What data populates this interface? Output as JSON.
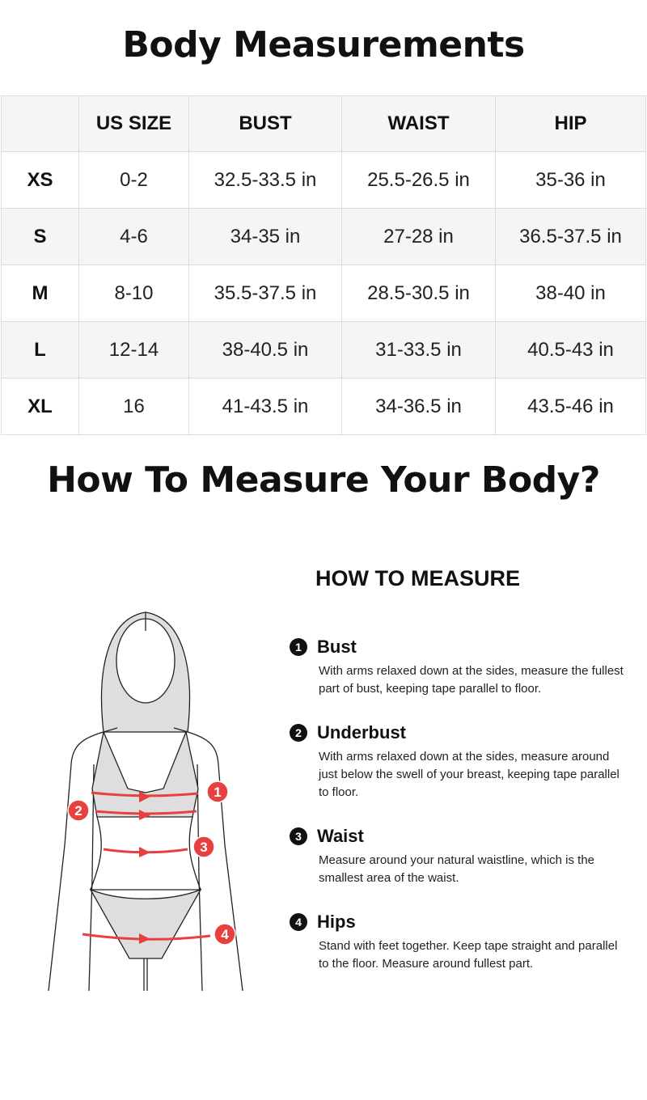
{
  "title": "Body Measurements",
  "table": {
    "headers": [
      "",
      "US SIZE",
      "BUST",
      "WAIST",
      "HIP"
    ],
    "rows": [
      [
        "XS",
        "0-2",
        "32.5-33.5 in",
        "25.5-26.5 in",
        "35-36 in"
      ],
      [
        "S",
        "4-6",
        "34-35 in",
        "27-28 in",
        "36.5-37.5 in"
      ],
      [
        "M",
        "8-10",
        "35.5-37.5 in",
        "28.5-30.5 in",
        "38-40 in"
      ],
      [
        "L",
        "12-14",
        "38-40.5 in",
        "31-33.5 in",
        "40.5-43 in"
      ],
      [
        "XL",
        "16",
        "41-43.5 in",
        "34-36.5 in",
        "43.5-46 in"
      ]
    ]
  },
  "subtitle": "How To Measure Your Body?",
  "guide": {
    "title": "HOW TO MEASURE",
    "steps": [
      {
        "num": "1",
        "title": "Bust",
        "desc": "With arms relaxed down at the sides, measure the fullest part of bust, keeping tape parallel to floor."
      },
      {
        "num": "2",
        "title": "Underbust",
        "desc": "With arms relaxed down at the sides, measure around just below the swell of your breast, keeping tape parallel to floor."
      },
      {
        "num": "3",
        "title": "Waist",
        "desc": "Measure around your natural waistline, which is the smallest area of the waist."
      },
      {
        "num": "4",
        "title": "Hips",
        "desc": "Stand with feet together. Keep tape straight and parallel to the floor. Measure around fullest part."
      }
    ]
  },
  "figure": {
    "markers": [
      "1",
      "2",
      "3",
      "4"
    ],
    "accent": "#e8403f"
  }
}
